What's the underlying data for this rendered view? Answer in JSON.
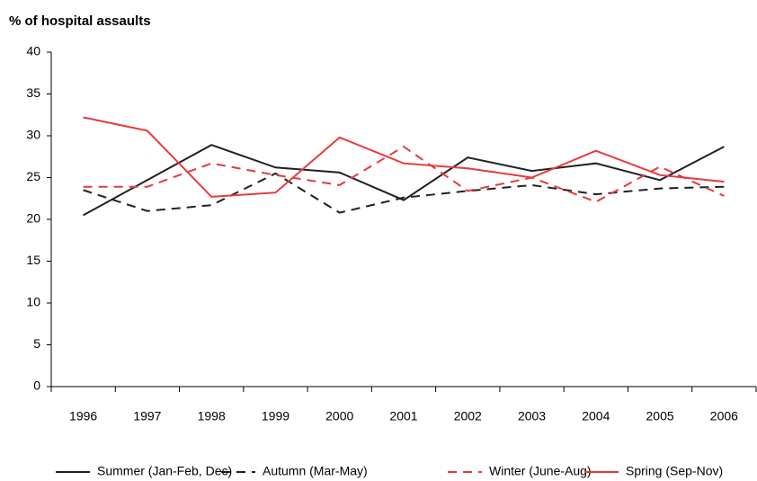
{
  "chart_data": {
    "type": "line",
    "title": "% of hospital assaults",
    "categories": [
      "1996",
      "1997",
      "1998",
      "1999",
      "2000",
      "2001",
      "2002",
      "2003",
      "2004",
      "2005",
      "2006"
    ],
    "series": [
      {
        "name": "Summer (Jan-Feb, Dec)",
        "color": "#231f20",
        "dashed": false,
        "values": [
          20.5,
          24.7,
          28.9,
          26.2,
          25.6,
          22.3,
          27.4,
          25.8,
          26.7,
          24.7,
          28.7
        ]
      },
      {
        "name": "Autumn (Mar-May)",
        "color": "#231f20",
        "dashed": true,
        "values": [
          23.5,
          21.0,
          21.7,
          25.5,
          20.8,
          22.6,
          23.4,
          24.1,
          23.0,
          23.7,
          23.9
        ]
      },
      {
        "name": "Winter (June-Aug)",
        "color": "#e8383d",
        "dashed": true,
        "values": [
          23.9,
          23.9,
          26.7,
          25.3,
          24.1,
          28.7,
          23.4,
          25.0,
          22.1,
          26.3,
          22.8
        ]
      },
      {
        "name": "Spring (Sep-Nov)",
        "color": "#e8383d",
        "dashed": false,
        "values": [
          32.2,
          30.6,
          22.7,
          23.2,
          29.8,
          26.7,
          26.1,
          25.0,
          28.2,
          25.3,
          24.5
        ]
      }
    ],
    "ylim": [
      0,
      40
    ],
    "yticks": [
      0,
      5,
      10,
      15,
      20,
      25,
      30,
      35,
      40
    ],
    "grid": false
  }
}
